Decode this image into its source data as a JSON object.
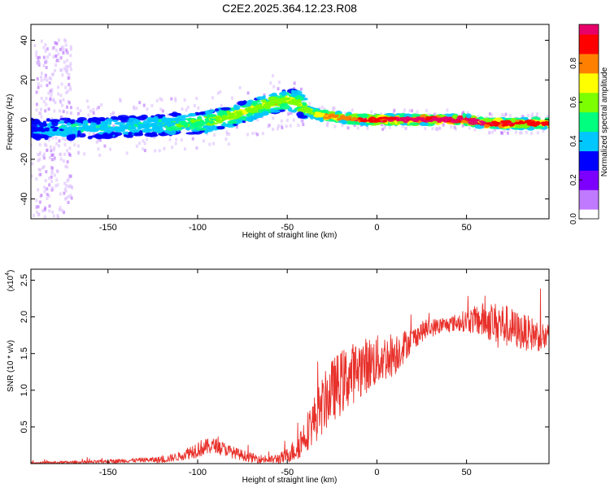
{
  "chart_data": [
    {
      "type": "heatmap",
      "title": "C2E2.2025.364.12.23.R08",
      "xlabel": "Height of straight line (km)",
      "ylabel": "Frequency (Hz)",
      "xlim": [
        -193,
        96
      ],
      "ylim": [
        -50,
        48
      ],
      "xticks": [
        "-150",
        "-100",
        "-50",
        "0",
        "50"
      ],
      "yticks": [
        "-40",
        "-20",
        "0",
        "20",
        "40"
      ],
      "colorbar": {
        "label": "Normalized spectral amplitude",
        "range": [
          0.0,
          1.0
        ],
        "ticks": [
          "0.0",
          "0.2",
          "0.4",
          "0.6",
          "0.8"
        ],
        "colors": [
          "#ffffff",
          "#c07aff",
          "#7d00ff",
          "#0000ff",
          "#00c8ff",
          "#00ff7f",
          "#7cff00",
          "#ffff00",
          "#ff8000",
          "#ff0000",
          "#e8006a"
        ]
      },
      "ridge": {
        "x": [
          -193,
          -175,
          -150,
          -125,
          -110,
          -100,
          -90,
          -80,
          -70,
          -60,
          -50,
          -45,
          -40,
          -35,
          -30,
          -20,
          -10,
          0,
          10,
          20,
          30,
          40,
          50,
          60,
          70,
          80,
          96
        ],
        "y": [
          -5,
          -4.5,
          -4,
          -3,
          -2,
          -2,
          0,
          2,
          5,
          8,
          10,
          9,
          5,
          3,
          2,
          1,
          0,
          0,
          0,
          0,
          0,
          0,
          0,
          -2,
          -2,
          -2,
          -2
        ],
        "amplitude": [
          0.2,
          0.3,
          0.3,
          0.3,
          0.4,
          0.4,
          0.5,
          0.5,
          0.5,
          0.5,
          0.5,
          0.5,
          0.55,
          0.6,
          0.7,
          0.75,
          0.8,
          0.85,
          0.9,
          0.95,
          0.95,
          0.9,
          0.9,
          0.9,
          0.85,
          0.85,
          0.85
        ]
      }
    },
    {
      "type": "line",
      "title": "",
      "xlabel": "Height of straight line (km)",
      "ylabel": "SNR (10 * v/v)",
      "multiplier": "(x10",
      "multiplier_exp": "4",
      "xlim": [
        -193,
        96
      ],
      "ylim": [
        0,
        2.65
      ],
      "xticks": [
        "-150",
        "-100",
        "-50",
        "0",
        "50"
      ],
      "yticks": [
        "0.5",
        "1.0",
        "1.5",
        "2.0",
        "2.5"
      ],
      "color": "#e8302a",
      "trend": {
        "x": [
          -193,
          -160,
          -130,
          -120,
          -110,
          -100,
          -90,
          -80,
          -70,
          -60,
          -52,
          -45,
          -40,
          -35,
          -30,
          -25,
          -20,
          -15,
          -10,
          -5,
          0,
          5,
          10,
          15,
          20,
          25,
          30,
          40,
          50,
          60,
          70,
          80,
          90,
          96
        ],
        "y": [
          0.01,
          0.02,
          0.05,
          0.05,
          0.1,
          0.2,
          0.25,
          0.15,
          0.08,
          0.05,
          0.08,
          0.2,
          0.4,
          0.6,
          0.8,
          1.0,
          1.1,
          1.2,
          1.3,
          1.35,
          1.4,
          1.45,
          1.5,
          1.6,
          1.7,
          1.8,
          1.85,
          1.9,
          1.95,
          1.95,
          1.9,
          1.8,
          1.75,
          1.7
        ]
      },
      "noise": {
        "x": [
          -193,
          -130,
          -110,
          -100,
          -80,
          -60,
          -50,
          -40,
          -30,
          -20,
          -10,
          0,
          10,
          20,
          40,
          50,
          60,
          70,
          80,
          96
        ],
        "y": [
          0.015,
          0.03,
          0.06,
          0.12,
          0.08,
          0.05,
          0.1,
          0.25,
          0.4,
          0.45,
          0.4,
          0.35,
          0.3,
          0.15,
          0.1,
          0.15,
          0.25,
          0.3,
          0.25,
          0.2
        ]
      }
    }
  ]
}
